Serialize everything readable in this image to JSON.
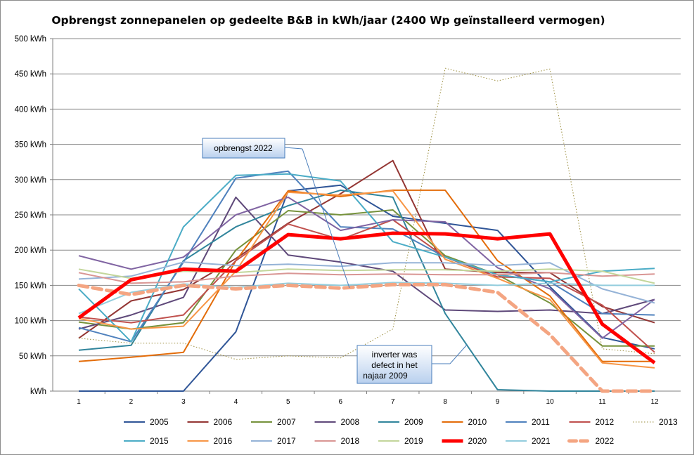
{
  "chart_data": {
    "type": "line",
    "title": "Opbrengst zonnepanelen op gedeelte B&B in kWh/jaar (2400 Wp geïnstalleerd vermogen)",
    "categories": [
      "1",
      "2",
      "3",
      "4",
      "5",
      "6",
      "7",
      "8",
      "9",
      "10",
      "11",
      "12"
    ],
    "ylim": [
      0,
      500
    ],
    "ytick_labels": [
      "kWh",
      "50 kWh",
      "100 kWh",
      "150 kWh",
      "200 kWh",
      "250 kWh",
      "300 kWh",
      "350 kWh",
      "400 kWh",
      "450 kWh",
      "500 kWh"
    ],
    "grid": true,
    "legend_position": "bottom",
    "series": [
      {
        "name": "2005",
        "color": "#2f5597",
        "width": 2,
        "dash": "solid",
        "values": [
          0,
          0,
          0,
          84,
          284,
          292,
          248,
          238,
          228,
          148,
          76,
          60
        ]
      },
      {
        "name": "2006",
        "color": "#943634",
        "width": 2,
        "dash": "solid",
        "values": [
          75,
          128,
          144,
          188,
          238,
          280,
          327,
          173,
          168,
          168,
          120,
          97
        ]
      },
      {
        "name": "2007",
        "color": "#76923c",
        "width": 2,
        "dash": "solid",
        "values": [
          98,
          88,
          97,
          200,
          256,
          250,
          257,
          192,
          165,
          125,
          64,
          64
        ]
      },
      {
        "name": "2008",
        "color": "#5f497a",
        "width": 2,
        "dash": "solid",
        "values": [
          88,
          108,
          133,
          275,
          193,
          183,
          170,
          115,
          113,
          115,
          110,
          130
        ]
      },
      {
        "name": "2009",
        "color": "#31859c",
        "width": 2,
        "dash": "solid",
        "values": [
          58,
          65,
          185,
          233,
          263,
          285,
          275,
          110,
          2,
          0,
          0,
          0
        ]
      },
      {
        "name": "2010",
        "color": "#e36c09",
        "width": 2,
        "dash": "solid",
        "values": [
          42,
          48,
          55,
          185,
          284,
          276,
          285,
          285,
          185,
          135,
          42,
          42
        ]
      },
      {
        "name": "2011",
        "color": "#4f81bd",
        "width": 2,
        "dash": "solid",
        "values": [
          90,
          70,
          183,
          302,
          312,
          233,
          230,
          190,
          165,
          155,
          110,
          108
        ]
      },
      {
        "name": "2012",
        "color": "#c0504d",
        "width": 2,
        "dash": "solid",
        "values": [
          105,
          97,
          108,
          185,
          237,
          215,
          243,
          190,
          162,
          160,
          122,
          55
        ]
      },
      {
        "name": "2013",
        "color": "#9a8c3b",
        "width": 1,
        "dash": "dotted",
        "values": [
          75,
          68,
          68,
          45,
          50,
          47,
          88,
          458,
          440,
          457,
          60,
          53
        ]
      },
      {
        "name": "2014",
        "color": "#8064a2",
        "width": 2,
        "dash": "solid",
        "values": [
          192,
          173,
          190,
          250,
          275,
          228,
          243,
          240,
          175,
          145,
          75,
          130
        ]
      },
      {
        "name": "2015",
        "color": "#4bacc6",
        "width": 2,
        "dash": "solid",
        "values": [
          145,
          70,
          233,
          306,
          308,
          298,
          212,
          190,
          165,
          155,
          170,
          174
        ]
      },
      {
        "name": "2016",
        "color": "#f79646",
        "width": 2,
        "dash": "solid",
        "values": [
          103,
          88,
          92,
          170,
          282,
          278,
          284,
          187,
          160,
          130,
          40,
          33
        ]
      },
      {
        "name": "2017",
        "color": "#95b3d7",
        "width": 2,
        "dash": "solid",
        "values": [
          159,
          163,
          183,
          178,
          180,
          177,
          182,
          182,
          178,
          182,
          145,
          125
        ]
      },
      {
        "name": "2018",
        "color": "#d99694",
        "width": 2,
        "dash": "solid",
        "values": [
          168,
          153,
          155,
          163,
          167,
          165,
          166,
          165,
          165,
          168,
          163,
          166
        ]
      },
      {
        "name": "2019",
        "color": "#c3d69b",
        "width": 2,
        "dash": "solid",
        "values": [
          173,
          160,
          170,
          168,
          173,
          171,
          172,
          172,
          170,
          173,
          170,
          153
        ]
      },
      {
        "name": "2020",
        "color": "#ff0000",
        "width": 5,
        "dash": "solid",
        "values": [
          104,
          158,
          173,
          170,
          222,
          216,
          224,
          223,
          216,
          223,
          95,
          40
        ]
      },
      {
        "name": "2021",
        "color": "#93cddd",
        "width": 2,
        "dash": "solid",
        "values": [
          110,
          140,
          152,
          147,
          153,
          150,
          154,
          153,
          150,
          153,
          150,
          150
        ]
      },
      {
        "name": "2022",
        "color": "#f4a582",
        "width": 5,
        "dash": "dashed",
        "values": [
          150,
          137,
          150,
          145,
          150,
          146,
          151,
          151,
          140,
          80,
          0,
          0
        ]
      }
    ],
    "annotations": [
      {
        "lines": [
          "opbrengst  2022"
        ]
      },
      {
        "lines": [
          "inverter  was",
          "defect  in het",
          "najaar 2009"
        ]
      }
    ]
  }
}
